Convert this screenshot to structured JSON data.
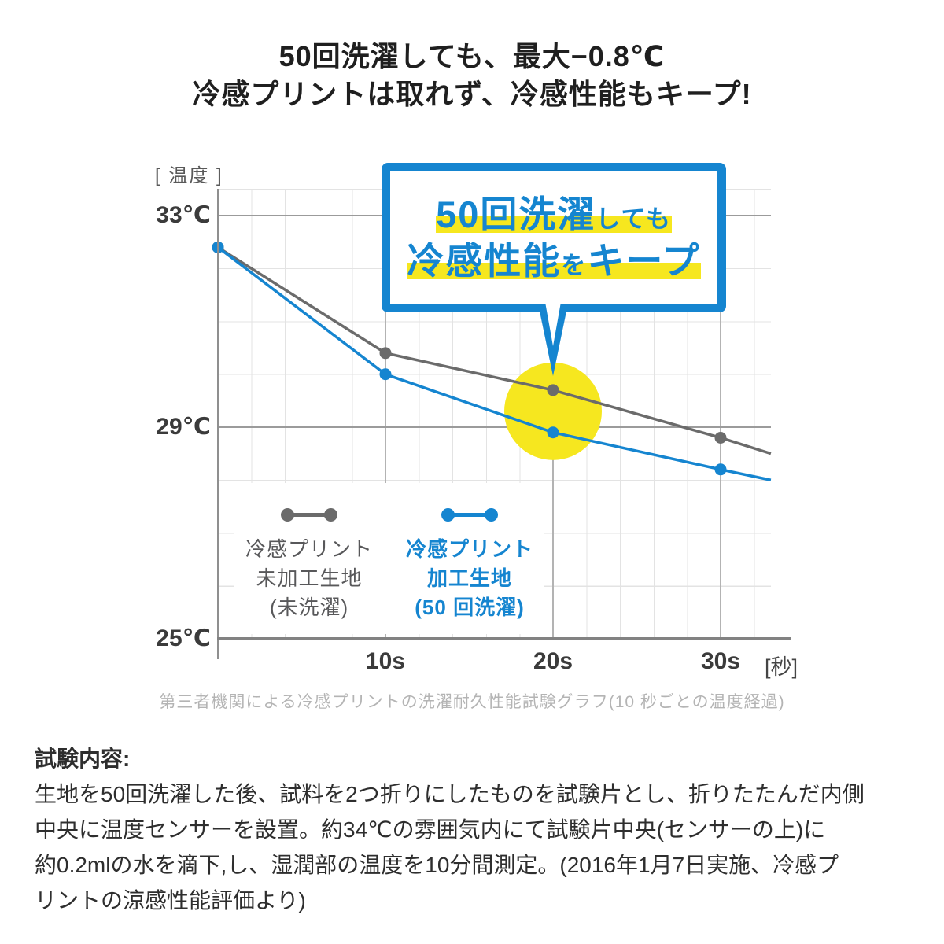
{
  "title": {
    "line1": "50回洗濯しても、最大−0.8℃",
    "line2": "冷感プリントは取れず、冷感性能もキープ!"
  },
  "callout": {
    "line1_big": "50回洗濯",
    "line1_small": "しても",
    "line2_big1": "冷感性能",
    "line2_small": "を",
    "line2_big2": "キープ"
  },
  "axes": {
    "y_unit": "[ 温度 ]",
    "y_ticks": [
      "33℃",
      "29℃",
      "25℃"
    ],
    "x_ticks": [
      "10s",
      "20s",
      "30s"
    ],
    "x_unit": "[秒]"
  },
  "legend": {
    "series1": {
      "lines": [
        "冷感プリント",
        "未加工生地",
        "(未洗濯)"
      ]
    },
    "series2": {
      "lines": [
        "冷感プリント",
        "加工生地",
        "(50 回洗濯)"
      ]
    }
  },
  "caption": "第三者機関による冷感プリントの洗濯耐久性能試験グラフ(10 秒ごとの温度経過)",
  "test_description": {
    "heading": "試験内容:",
    "lines": [
      "生地を50回洗濯した後、試料を2つ折りにしたものを試験片とし、折りたたんだ内側",
      "中央に温度センサーを設置。約34℃の雰囲気内にて試験片中央(センサーの上)に",
      "約0.2mlの水を滴下,し、湿潤部の温度を10分間測定。(2016年1月7日実施、冷感プ",
      "リントの涼感性能評価より)"
    ]
  },
  "colors": {
    "blue": "#1585d0",
    "gray": "#6b6b6b",
    "yellow": "#f6e71f"
  },
  "chart_data": {
    "type": "line",
    "title": "冷感プリントの洗濯耐久性能試験(10秒ごとの温度経過)",
    "xlabel": "[秒]",
    "ylabel": "[ 温度 ]",
    "x": [
      0,
      10,
      20,
      30,
      33
    ],
    "marker_x": [
      0,
      10,
      20,
      30
    ],
    "x_ticks_s": [
      10,
      20,
      30
    ],
    "y_ticks_c": [
      33,
      29,
      25
    ],
    "ylim": [
      25,
      33
    ],
    "xlim": [
      0,
      33
    ],
    "grid": true,
    "legend_position": "inside-bottom-left",
    "series": [
      {
        "name": "冷感プリント 未加工生地(未洗濯)",
        "color_key": "gray",
        "values": [
          32.4,
          30.4,
          29.7,
          28.8,
          28.5
        ]
      },
      {
        "name": "冷感プリント 加工生地(50 回洗濯)",
        "color_key": "blue",
        "values": [
          32.4,
          30.0,
          28.9,
          28.2,
          28.0
        ]
      }
    ],
    "highlight_circle": {
      "x_s": 20,
      "temp_c": 29.3,
      "radius_px": 62
    },
    "annotation": "50回洗濯しても冷感性能をキープ"
  }
}
